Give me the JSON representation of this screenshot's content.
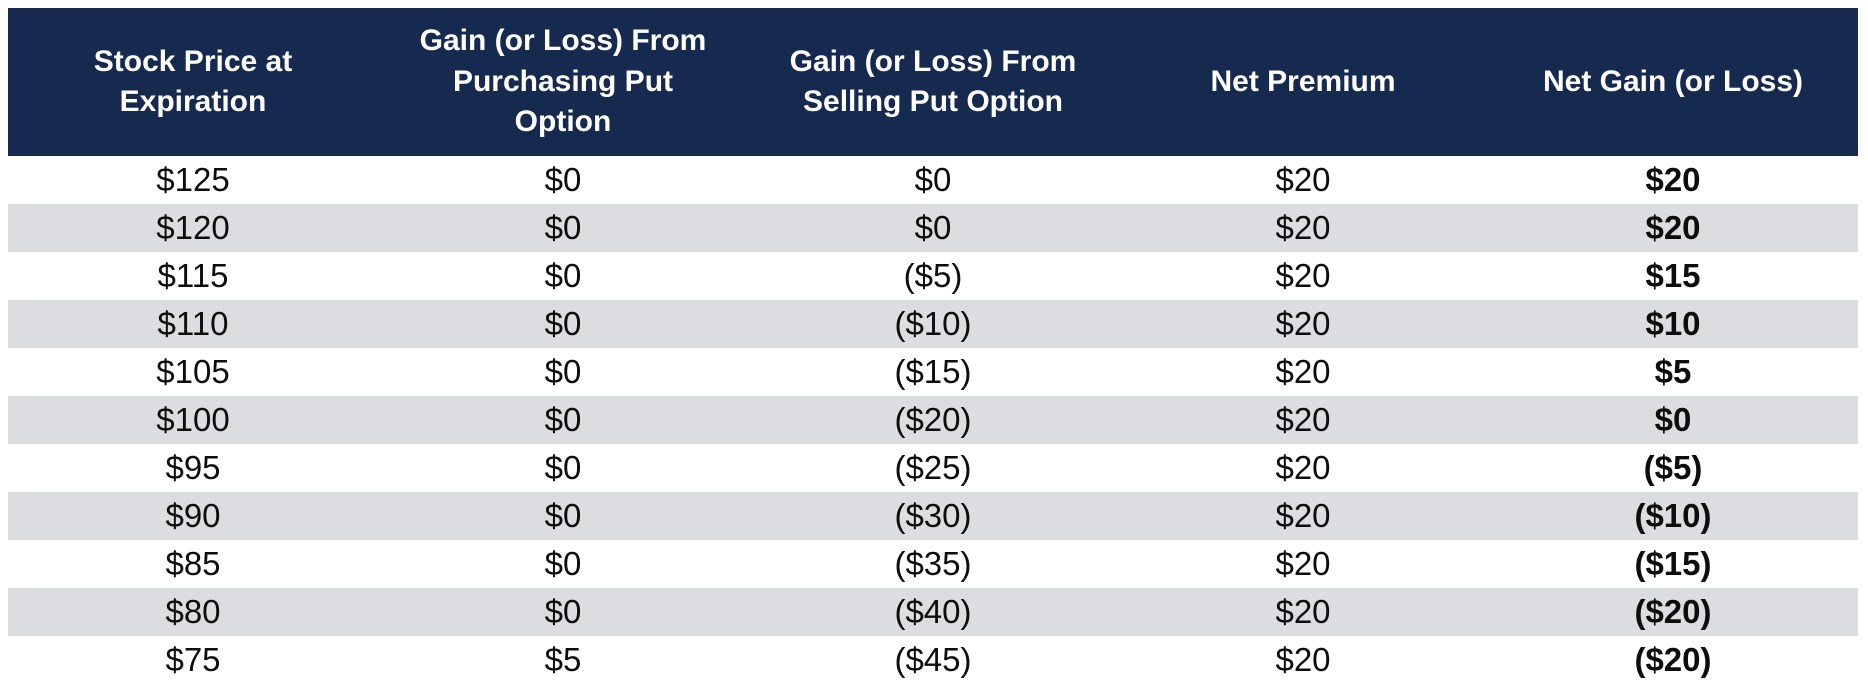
{
  "colors": {
    "header_bg": "#16294e",
    "header_text": "#ffffff",
    "stripe": "#dcdde0",
    "text": "#0d0d0d"
  },
  "table": {
    "columns": [
      "Stock Price at Expiration",
      "Gain (or Loss) From Purchasing Put Option",
      "Gain (or Loss) From Selling Put Option",
      "Net Premium",
      "Net Gain (or Loss)"
    ],
    "rows": [
      [
        "$125",
        "$0",
        "$0",
        "$20",
        "$20"
      ],
      [
        "$120",
        "$0",
        "$0",
        "$20",
        "$20"
      ],
      [
        "$115",
        "$0",
        "($5)",
        "$20",
        "$15"
      ],
      [
        "$110",
        "$0",
        "($10)",
        "$20",
        "$10"
      ],
      [
        "$105",
        "$0",
        "($15)",
        "$20",
        "$5"
      ],
      [
        "$100",
        "$0",
        "($20)",
        "$20",
        "$0"
      ],
      [
        "$95",
        "$0",
        "($25)",
        "$20",
        "($5)"
      ],
      [
        "$90",
        "$0",
        "($30)",
        "$20",
        "($10)"
      ],
      [
        "$85",
        "$0",
        "($35)",
        "$20",
        "($15)"
      ],
      [
        "$80",
        "$0",
        "($40)",
        "$20",
        "($20)"
      ],
      [
        "$75",
        "$5",
        "($45)",
        "$20",
        "($20)"
      ]
    ]
  },
  "chart_data": {
    "type": "table",
    "title": "",
    "columns": [
      "Stock Price at Expiration",
      "Gain (or Loss) From Purchasing Put Option",
      "Gain (or Loss) From Selling Put Option",
      "Net Premium",
      "Net Gain (or Loss)"
    ],
    "stock_price_at_expiration": [
      125,
      120,
      115,
      110,
      105,
      100,
      95,
      90,
      85,
      80,
      75
    ],
    "gain_from_purchasing_put": [
      0,
      0,
      0,
      0,
      0,
      0,
      0,
      0,
      0,
      0,
      5
    ],
    "gain_from_selling_put": [
      0,
      0,
      -5,
      -10,
      -15,
      -20,
      -25,
      -30,
      -35,
      -40,
      -45
    ],
    "net_premium": [
      20,
      20,
      20,
      20,
      20,
      20,
      20,
      20,
      20,
      20,
      20
    ],
    "net_gain": [
      20,
      20,
      15,
      10,
      5,
      0,
      -5,
      -10,
      -15,
      -20,
      -20
    ]
  }
}
